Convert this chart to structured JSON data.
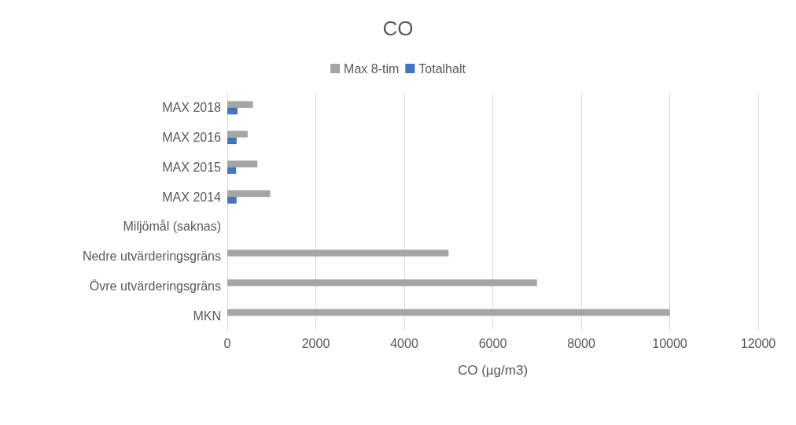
{
  "chart_data": {
    "type": "bar",
    "title": "CO",
    "orientation": "horizontal",
    "xlabel": "CO (µg/m3)",
    "categories": [
      "MAX 2018",
      "MAX 2016",
      "MAX 2015",
      "MAX 2014",
      "Miljömål (saknas)",
      "Nedre utvärderingsgräns",
      "Övre utvärderingsgräns",
      "MKN"
    ],
    "series": [
      {
        "name": "Max 8-tim",
        "color": "#a5a5a5",
        "values": [
          580,
          460,
          680,
          970,
          null,
          5000,
          7000,
          10000
        ]
      },
      {
        "name": "Totalhalt",
        "color": "#4472c4",
        "values": [
          230,
          210,
          200,
          210,
          null,
          null,
          null,
          null
        ]
      }
    ],
    "xlim": [
      0,
      12000
    ],
    "xticks": [
      0,
      2000,
      4000,
      6000,
      8000,
      10000,
      12000
    ],
    "grid": "x",
    "legend": "top"
  }
}
